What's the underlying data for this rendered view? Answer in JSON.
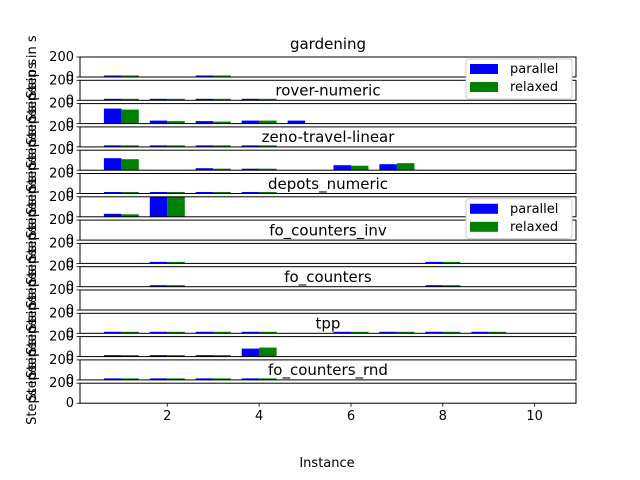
{
  "figure": {
    "xlabel": "Instance",
    "ylabel": "Steps in s",
    "legend_labels": [
      "parallel",
      "relaxed"
    ],
    "x_ticks": [
      "2",
      "4",
      "6",
      "8",
      "10"
    ]
  },
  "chart_data": {
    "type": "bar",
    "x_range": [
      0.1,
      10.9
    ],
    "x_tick_values": [
      2,
      4,
      6,
      8,
      10
    ],
    "ylim": [
      0,
      200
    ],
    "y_ticks": [
      0,
      200
    ],
    "xlabel": "Instance",
    "ylabel": "Steps in s",
    "series_colors": {
      "parallel": "#0000ff",
      "relaxed": "#008000"
    },
    "panels": [
      {
        "title": "gardening",
        "parallel": [
          3,
          null,
          1,
          null,
          null,
          null,
          null,
          null,
          null,
          null
        ],
        "relaxed": [
          2,
          null,
          3,
          null,
          null,
          null,
          null,
          null,
          null,
          null
        ],
        "legend": true
      },
      {
        "title": "",
        "parallel": [
          3,
          2,
          2,
          2,
          null,
          null,
          null,
          null,
          null,
          null
        ],
        "relaxed": [
          3,
          2,
          2,
          2,
          null,
          null,
          null,
          null,
          null,
          null
        ]
      },
      {
        "title": "rover-numeric",
        "parallel": [
          150,
          30,
          25,
          30,
          30,
          null,
          null,
          null,
          null,
          null
        ],
        "relaxed": [
          140,
          25,
          20,
          30,
          null,
          null,
          null,
          null,
          null,
          null
        ]
      },
      {
        "title": "",
        "parallel": [
          3,
          3,
          3,
          3,
          null,
          null,
          null,
          null,
          null,
          null
        ],
        "relaxed": [
          3,
          3,
          3,
          3,
          null,
          null,
          null,
          null,
          null,
          null
        ]
      },
      {
        "title": "zeno-travel-linear",
        "parallel": [
          120,
          null,
          20,
          15,
          null,
          50,
          60,
          null,
          null,
          null
        ],
        "relaxed": [
          110,
          null,
          15,
          12,
          null,
          45,
          70,
          null,
          null,
          null
        ]
      },
      {
        "title": "",
        "parallel": [
          3,
          3,
          3,
          3,
          null,
          null,
          null,
          null,
          null,
          null
        ],
        "relaxed": [
          3,
          3,
          3,
          3,
          null,
          null,
          null,
          null,
          null,
          null
        ]
      },
      {
        "title": "depots_numeric",
        "parallel": [
          30,
          200,
          null,
          null,
          null,
          null,
          null,
          null,
          null,
          null
        ],
        "relaxed": [
          25,
          200,
          null,
          null,
          null,
          null,
          null,
          null,
          null,
          null
        ],
        "legend": true
      },
      {
        "title": "",
        "parallel": [
          null,
          null,
          null,
          null,
          null,
          null,
          null,
          null,
          null,
          null
        ],
        "relaxed": [
          null,
          null,
          null,
          null,
          null,
          null,
          null,
          null,
          null,
          null
        ]
      },
      {
        "title": "fo_counters_inv",
        "parallel": [
          null,
          5,
          null,
          null,
          null,
          null,
          null,
          5,
          null,
          null
        ],
        "relaxed": [
          null,
          5,
          null,
          null,
          null,
          null,
          null,
          5,
          null,
          null
        ]
      },
      {
        "title": "",
        "parallel": [
          null,
          5,
          null,
          null,
          null,
          null,
          null,
          5,
          null,
          null
        ],
        "relaxed": [
          null,
          5,
          null,
          null,
          null,
          null,
          null,
          5,
          null,
          null
        ]
      },
      {
        "title": "fo_counters",
        "parallel": [
          null,
          null,
          null,
          null,
          null,
          null,
          null,
          null,
          null,
          null
        ],
        "relaxed": [
          null,
          null,
          null,
          null,
          null,
          null,
          null,
          null,
          null,
          null
        ]
      },
      {
        "title": "",
        "parallel": [
          3,
          3,
          3,
          3,
          null,
          3,
          3,
          3,
          3,
          null
        ],
        "relaxed": [
          3,
          3,
          3,
          3,
          null,
          3,
          3,
          3,
          3,
          null
        ]
      },
      {
        "title": "tpp",
        "parallel": [
          5,
          15,
          5,
          80,
          null,
          null,
          null,
          null,
          null,
          null
        ],
        "relaxed": [
          5,
          12,
          5,
          90,
          null,
          null,
          null,
          null,
          null,
          null
        ]
      },
      {
        "title": "",
        "parallel": [
          3,
          3,
          3,
          3,
          null,
          null,
          null,
          null,
          null,
          null
        ],
        "relaxed": [
          3,
          3,
          3,
          3,
          null,
          null,
          null,
          null,
          null,
          null
        ]
      },
      {
        "title": "fo_counters_rnd",
        "parallel": [
          null,
          null,
          null,
          null,
          null,
          null,
          null,
          null,
          null,
          null
        ],
        "relaxed": [
          null,
          null,
          null,
          null,
          null,
          null,
          null,
          null,
          null,
          null
        ]
      }
    ]
  }
}
